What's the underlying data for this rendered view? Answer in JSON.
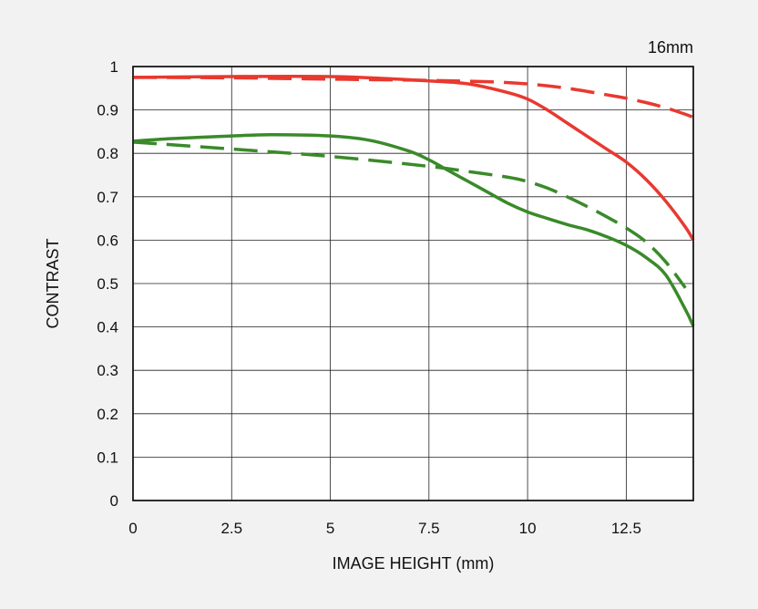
{
  "chart_data": {
    "type": "line",
    "title": "",
    "corner_label": "16mm",
    "xlabel": "IMAGE HEIGHT (mm)",
    "ylabel": "CONTRAST",
    "xlim": [
      0,
      14.2
    ],
    "ylim": [
      0,
      1
    ],
    "xticks": [
      0,
      2.5,
      5,
      7.5,
      10,
      12.5
    ],
    "xtick_labels": [
      "0",
      "2.5",
      "5",
      "7.5",
      "10",
      "12.5"
    ],
    "yticks": [
      0,
      0.1,
      0.2,
      0.3,
      0.4,
      0.5,
      0.6,
      0.7,
      0.8,
      0.9,
      1
    ],
    "ytick_labels": [
      "0",
      "0.1",
      "0.2",
      "0.3",
      "0.4",
      "0.5",
      "0.6",
      "0.7",
      "0.8",
      "0.9",
      "1"
    ],
    "grid": true,
    "series": [
      {
        "color": "#e8392f",
        "dash": "solid",
        "x": [
          0,
          2.5,
          5,
          6.5,
          7.5,
          8.5,
          9.5,
          10,
          10.5,
          11,
          11.5,
          12,
          12.5,
          13,
          13.5,
          14,
          14.2
        ],
        "y": [
          0.975,
          0.977,
          0.977,
          0.972,
          0.967,
          0.96,
          0.94,
          0.925,
          0.9,
          0.87,
          0.84,
          0.81,
          0.78,
          0.74,
          0.69,
          0.63,
          0.6
        ]
      },
      {
        "color": "#e8392f",
        "dash": "dashed",
        "x": [
          0,
          2.5,
          5,
          7.5,
          9,
          10,
          11,
          12,
          12.5,
          13,
          13.5,
          14,
          14.2
        ],
        "y": [
          0.975,
          0.974,
          0.971,
          0.968,
          0.965,
          0.96,
          0.95,
          0.935,
          0.927,
          0.917,
          0.905,
          0.89,
          0.883
        ]
      },
      {
        "color": "#3a8a2a",
        "dash": "solid",
        "x": [
          0,
          1,
          2.5,
          3.5,
          5,
          6,
          7,
          7.5,
          8,
          8.5,
          9,
          9.5,
          10,
          10.5,
          11,
          11.5,
          12,
          12.5,
          13,
          13.5,
          14,
          14.2
        ],
        "y": [
          0.828,
          0.834,
          0.84,
          0.843,
          0.84,
          0.83,
          0.805,
          0.785,
          0.76,
          0.735,
          0.71,
          0.685,
          0.665,
          0.65,
          0.636,
          0.624,
          0.608,
          0.588,
          0.56,
          0.52,
          0.44,
          0.402
        ]
      },
      {
        "color": "#3a8a2a",
        "dash": "dashed",
        "x": [
          0,
          2.5,
          5,
          7.5,
          8.5,
          9.5,
          10,
          10.5,
          11,
          11.5,
          12,
          12.5,
          13,
          13.5,
          14
        ],
        "y": [
          0.826,
          0.81,
          0.793,
          0.77,
          0.758,
          0.745,
          0.735,
          0.72,
          0.7,
          0.678,
          0.654,
          0.628,
          0.596,
          0.55,
          0.49
        ]
      }
    ]
  }
}
